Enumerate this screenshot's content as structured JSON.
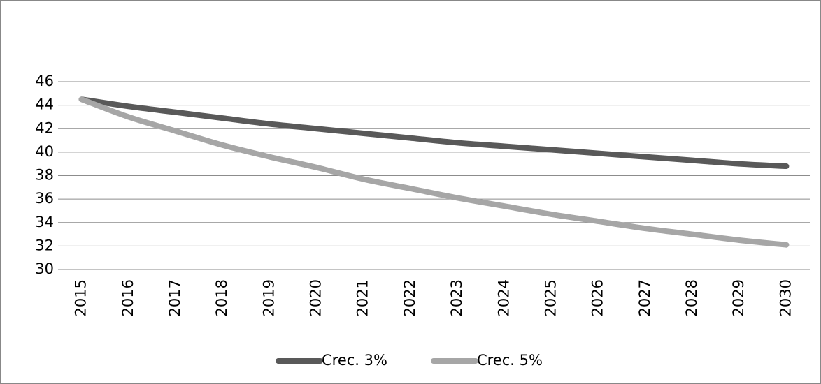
{
  "chart_data": {
    "type": "line",
    "categories": [
      "2015",
      "2016",
      "2017",
      "2018",
      "2019",
      "2020",
      "2021",
      "2022",
      "2023",
      "2024",
      "2025",
      "2026",
      "2027",
      "2028",
      "2029",
      "2030"
    ],
    "series": [
      {
        "name": "Crec. 3%",
        "color": "#595959",
        "values": [
          44.5,
          43.9,
          43.4,
          42.9,
          42.4,
          42.0,
          41.6,
          41.2,
          40.8,
          40.5,
          40.2,
          39.9,
          39.6,
          39.3,
          39.0,
          38.8
        ]
      },
      {
        "name": "Crec. 5%",
        "color": "#a6a6a6",
        "values": [
          44.5,
          43.0,
          41.8,
          40.6,
          39.6,
          38.7,
          37.7,
          36.9,
          36.1,
          35.4,
          34.7,
          34.1,
          33.5,
          33.0,
          32.5,
          32.1
        ]
      }
    ],
    "ylim": [
      30,
      46
    ],
    "yticks": [
      30,
      32,
      34,
      36,
      38,
      40,
      42,
      44,
      46
    ],
    "grid": true,
    "legend": "bottom"
  }
}
